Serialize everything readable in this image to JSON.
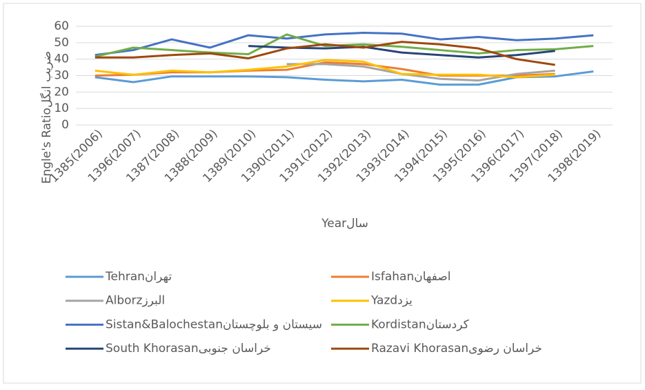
{
  "chart_data": {
    "type": "line",
    "y_label": "Engle's Ratioضریب انگل",
    "x_label": "Yearسال",
    "categories": [
      "1385(2006)",
      "1396(2007)",
      "1387(2008)",
      "1388(2009)",
      "1389(2010)",
      "1390(2011)",
      "1391(2012)",
      "1392(2013)",
      "1393(2014)",
      "1394(2015)",
      "1395(2016)",
      "1396(2017)",
      "1397(2018)",
      "1398(2019)"
    ],
    "ylim": [
      0,
      60
    ],
    "yticks": [
      0,
      10,
      20,
      30,
      40,
      50,
      60
    ],
    "grid": true,
    "series": [
      {
        "name": "Tehranتهران",
        "color": "#5b9bd5",
        "values": [
          29,
          26,
          29.5,
          29.5,
          29.5,
          29,
          27.5,
          26.5,
          27.5,
          24.5,
          24.5,
          29,
          29.5,
          32.5
        ]
      },
      {
        "name": "Isfahanاصفهان",
        "color": "#ed7d31",
        "values": [
          30,
          30.5,
          32,
          32,
          33,
          33.5,
          38,
          37,
          34,
          30,
          30,
          30,
          31,
          null
        ]
      },
      {
        "name": "Alborzالبرز",
        "color": "#a5a5a5",
        "values": [
          null,
          null,
          null,
          null,
          null,
          37,
          37,
          35.5,
          31,
          28,
          27,
          31,
          33,
          null
        ]
      },
      {
        "name": "Yazdیزد",
        "color": "#ffc000",
        "values": [
          33,
          30.5,
          33,
          32,
          33.5,
          35.5,
          39.5,
          38.5,
          31,
          30.5,
          30.5,
          29,
          30.5,
          null
        ]
      },
      {
        "name": "Sistan&Balochestanسیستان و بلوچستان",
        "color": "#4472c4",
        "values": [
          42.5,
          45.5,
          52,
          47,
          54.5,
          52.5,
          55,
          56,
          55.5,
          52,
          53.5,
          51.5,
          52.5,
          54.5
        ]
      },
      {
        "name": "Kordistanکردستان",
        "color": "#70ad47",
        "values": [
          41.5,
          47,
          45.5,
          44,
          43,
          55,
          48,
          49,
          47.5,
          45.5,
          43.5,
          45.5,
          46,
          48
        ]
      },
      {
        "name": "South Khorasanخراسان جنوبی",
        "color": "#264478",
        "values": [
          null,
          null,
          null,
          null,
          48,
          47,
          46.5,
          47.5,
          44,
          42.5,
          41,
          42.5,
          45,
          null
        ]
      },
      {
        "name": "Razavi Khorasanخراسان رضوی",
        "color": "#9e480e",
        "values": [
          41,
          41,
          42.5,
          43.5,
          40.5,
          46.5,
          49,
          47,
          50.5,
          49,
          46.5,
          40,
          36.5,
          null
        ]
      }
    ]
  }
}
